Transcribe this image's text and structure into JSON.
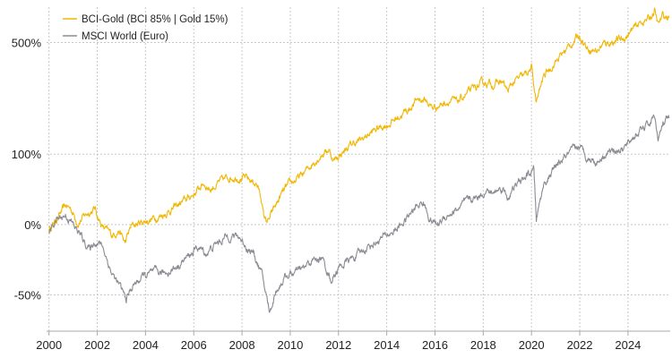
{
  "chart_data": {
    "type": "line",
    "title": "",
    "xlabel": "",
    "ylabel": "",
    "y_scale": "log-ratio",
    "x_range": [
      1999.9,
      2025.75
    ],
    "y_range_percent": [
      -65,
      750
    ],
    "grid": {
      "vertical": true,
      "horizontal": true,
      "style": "dotted"
    },
    "legend_position": "top-left",
    "x_ticks": [
      "2000",
      "2002",
      "2004",
      "2006",
      "2008",
      "2010",
      "2012",
      "2014",
      "2016",
      "2018",
      "2020",
      "2022",
      "2024"
    ],
    "y_ticks": [
      {
        "value": 500,
        "label": "500%"
      },
      {
        "value": 100,
        "label": "100%"
      },
      {
        "value": 0,
        "label": "0%"
      },
      {
        "value": -50,
        "label": "-50%"
      }
    ],
    "series": [
      {
        "name": "BCI-Gold (BCI 85% | Gold 15%)",
        "color": "#f2b705",
        "points": [
          [
            2000.0,
            -5
          ],
          [
            2000.3,
            5
          ],
          [
            2000.7,
            20
          ],
          [
            2000.9,
            17
          ],
          [
            2001.2,
            2
          ],
          [
            2001.6,
            12
          ],
          [
            2001.9,
            17
          ],
          [
            2002.2,
            -2
          ],
          [
            2002.6,
            -10
          ],
          [
            2002.9,
            -5
          ],
          [
            2003.15,
            -17
          ],
          [
            2003.4,
            -2
          ],
          [
            2003.8,
            2
          ],
          [
            2004.2,
            5
          ],
          [
            2004.7,
            10
          ],
          [
            2005.2,
            18
          ],
          [
            2005.7,
            28
          ],
          [
            2006.1,
            38
          ],
          [
            2006.4,
            50
          ],
          [
            2006.7,
            42
          ],
          [
            2007.1,
            52
          ],
          [
            2007.5,
            60
          ],
          [
            2007.9,
            60
          ],
          [
            2008.3,
            55
          ],
          [
            2008.6,
            50
          ],
          [
            2008.8,
            30
          ],
          [
            2008.9,
            8
          ],
          [
            2009.0,
            5
          ],
          [
            2009.1,
            3
          ],
          [
            2009.3,
            15
          ],
          [
            2009.7,
            38
          ],
          [
            2010.1,
            52
          ],
          [
            2010.5,
            62
          ],
          [
            2010.9,
            82
          ],
          [
            2011.3,
            100
          ],
          [
            2011.6,
            110
          ],
          [
            2011.8,
            88
          ],
          [
            2012.2,
            105
          ],
          [
            2012.6,
            122
          ],
          [
            2012.9,
            128
          ],
          [
            2013.3,
            145
          ],
          [
            2013.7,
            160
          ],
          [
            2014.1,
            170
          ],
          [
            2014.5,
            190
          ],
          [
            2014.9,
            210
          ],
          [
            2015.3,
            245
          ],
          [
            2015.6,
            240
          ],
          [
            2015.9,
            215
          ],
          [
            2016.2,
            225
          ],
          [
            2016.6,
            240
          ],
          [
            2016.9,
            232
          ],
          [
            2017.3,
            260
          ],
          [
            2017.7,
            285
          ],
          [
            2018.1,
            305
          ],
          [
            2018.4,
            298
          ],
          [
            2018.8,
            308
          ],
          [
            2019.0,
            270
          ],
          [
            2019.3,
            310
          ],
          [
            2019.7,
            330
          ],
          [
            2020.0,
            365
          ],
          [
            2020.2,
            230
          ],
          [
            2020.5,
            330
          ],
          [
            2020.9,
            385
          ],
          [
            2021.3,
            440
          ],
          [
            2021.7,
            500
          ],
          [
            2022.0,
            545
          ],
          [
            2022.3,
            470
          ],
          [
            2022.7,
            455
          ],
          [
            2023.0,
            490
          ],
          [
            2023.4,
            510
          ],
          [
            2023.8,
            520
          ],
          [
            2024.2,
            580
          ],
          [
            2024.6,
            640
          ],
          [
            2024.9,
            660
          ],
          [
            2025.1,
            720
          ],
          [
            2025.25,
            610
          ],
          [
            2025.45,
            680
          ],
          [
            2025.7,
            665
          ]
        ]
      },
      {
        "name": "MSCI World (Euro)",
        "color": "#8a8b93",
        "points": [
          [
            2000.0,
            -7
          ],
          [
            2000.3,
            5
          ],
          [
            2000.7,
            10
          ],
          [
            2001.0,
            0
          ],
          [
            2001.3,
            -10
          ],
          [
            2001.7,
            -22
          ],
          [
            2001.9,
            -15
          ],
          [
            2002.2,
            -18
          ],
          [
            2002.6,
            -38
          ],
          [
            2002.9,
            -45
          ],
          [
            2003.2,
            -52
          ],
          [
            2003.5,
            -45
          ],
          [
            2003.9,
            -40
          ],
          [
            2004.3,
            -38
          ],
          [
            2004.8,
            -38
          ],
          [
            2005.2,
            -35
          ],
          [
            2005.7,
            -28
          ],
          [
            2006.2,
            -20
          ],
          [
            2006.5,
            -25
          ],
          [
            2006.9,
            -18
          ],
          [
            2007.3,
            -12
          ],
          [
            2007.6,
            -10
          ],
          [
            2007.9,
            -12
          ],
          [
            2008.2,
            -20
          ],
          [
            2008.5,
            -25
          ],
          [
            2008.8,
            -38
          ],
          [
            2009.0,
            -50
          ],
          [
            2009.15,
            -58
          ],
          [
            2009.4,
            -48
          ],
          [
            2009.8,
            -40
          ],
          [
            2010.2,
            -38
          ],
          [
            2010.6,
            -35
          ],
          [
            2010.9,
            -30
          ],
          [
            2011.3,
            -28
          ],
          [
            2011.7,
            -42
          ],
          [
            2012.0,
            -35
          ],
          [
            2012.4,
            -30
          ],
          [
            2012.8,
            -26
          ],
          [
            2013.2,
            -20
          ],
          [
            2013.6,
            -15
          ],
          [
            2014.0,
            -10
          ],
          [
            2014.4,
            -5
          ],
          [
            2014.8,
            5
          ],
          [
            2015.2,
            18
          ],
          [
            2015.5,
            25
          ],
          [
            2015.8,
            5
          ],
          [
            2016.1,
            0
          ],
          [
            2016.5,
            10
          ],
          [
            2016.9,
            15
          ],
          [
            2017.3,
            25
          ],
          [
            2017.7,
            30
          ],
          [
            2018.1,
            40
          ],
          [
            2018.4,
            35
          ],
          [
            2018.8,
            45
          ],
          [
            2019.0,
            30
          ],
          [
            2019.4,
            48
          ],
          [
            2019.8,
            60
          ],
          [
            2020.1,
            70
          ],
          [
            2020.2,
            5
          ],
          [
            2020.5,
            48
          ],
          [
            2020.9,
            70
          ],
          [
            2021.3,
            90
          ],
          [
            2021.7,
            105
          ],
          [
            2022.0,
            115
          ],
          [
            2022.3,
            95
          ],
          [
            2022.7,
            85
          ],
          [
            2023.0,
            100
          ],
          [
            2023.4,
            110
          ],
          [
            2023.8,
            108
          ],
          [
            2024.2,
            135
          ],
          [
            2024.6,
            155
          ],
          [
            2024.9,
            170
          ],
          [
            2025.1,
            195
          ],
          [
            2025.25,
            130
          ],
          [
            2025.45,
            165
          ],
          [
            2025.7,
            185
          ]
        ]
      }
    ]
  }
}
